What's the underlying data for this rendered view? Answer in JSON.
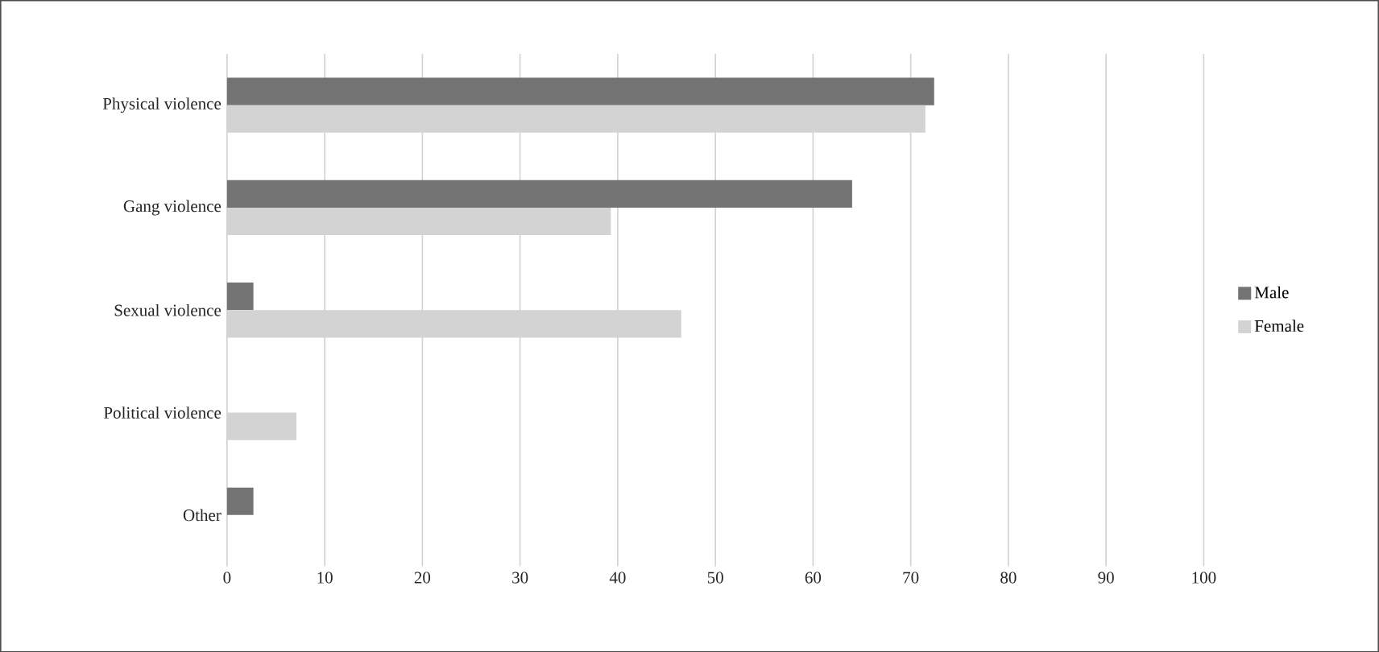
{
  "chart_data": {
    "type": "bar",
    "orientation": "horizontal",
    "categories": [
      "Physical violence",
      "Gang violence",
      "Sexual violence",
      "Political violence",
      "Other"
    ],
    "series": [
      {
        "name": "Male",
        "color": "#737373",
        "values": [
          72.4,
          64.0,
          2.7,
          null,
          2.7
        ]
      },
      {
        "name": "Female",
        "color": "#d3d3d3",
        "values": [
          71.5,
          39.3,
          46.5,
          7.1,
          null
        ]
      }
    ],
    "xlim": [
      0,
      100
    ],
    "xticks": [
      0,
      10,
      20,
      30,
      40,
      50,
      60,
      70,
      80,
      90,
      100
    ],
    "grid": "x",
    "legend": "right"
  }
}
